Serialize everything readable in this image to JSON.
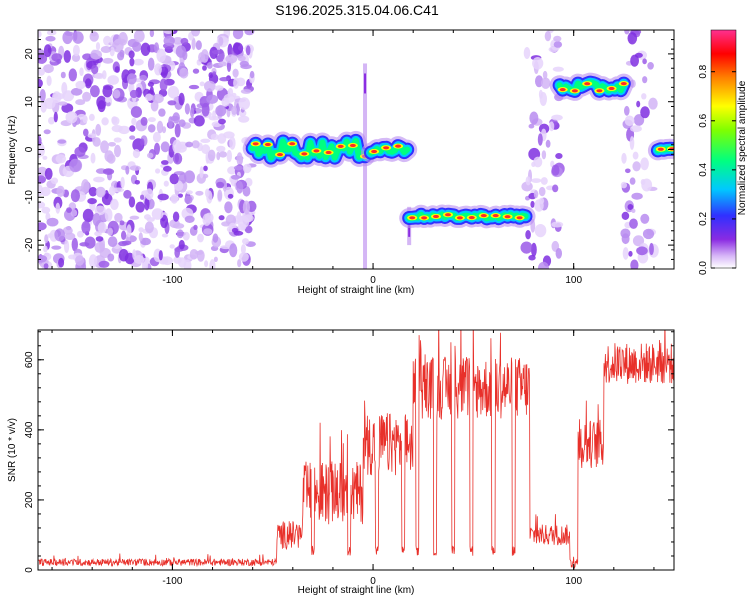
{
  "title": "S196.2025.315.04.06.C41",
  "chart_data": [
    {
      "type": "heatmap",
      "xlabel": "Height of straight line (km)",
      "ylabel": "Frequency (Hz)",
      "xlim": [
        -167,
        150
      ],
      "ylim": [
        -25,
        25
      ],
      "xticks": [
        -100,
        0,
        100
      ],
      "yticks": [
        -20,
        -10,
        0,
        10,
        20
      ],
      "colorbar": {
        "label": "Normalized spectral amplitude",
        "range": [
          0.0,
          0.97
        ],
        "ticks": [
          "0.0",
          "0.2",
          "0.4",
          "0.6",
          "0.8"
        ],
        "tick_values": [
          0.0,
          0.2,
          0.4,
          0.6,
          0.8
        ],
        "colors": [
          "#ffffff",
          "#d8b8f8",
          "#8a2be2",
          "#3030ff",
          "#00c8ff",
          "#00ff80",
          "#80ff00",
          "#ffff00",
          "#ff8000",
          "#ff0000",
          "#ff3090"
        ]
      },
      "noise_regions": [
        {
          "x_start": -167,
          "x_end": -60,
          "density": "dense"
        },
        {
          "x_start": 76,
          "x_end": 93,
          "density": "medium"
        },
        {
          "x_start": 125,
          "x_end": 140,
          "density": "medium"
        }
      ],
      "tracks": [
        {
          "x_start": -60,
          "x_end": -4,
          "freq": 0,
          "variation": 1.8
        },
        {
          "x_start": -1,
          "x_end": 17,
          "freq": 0,
          "variation": 1.0
        },
        {
          "x_start": 18,
          "x_end": 76,
          "freq": -14,
          "variation": 0.4
        },
        {
          "x_start": 93,
          "x_end": 125,
          "freq": 13,
          "variation": 1.0
        },
        {
          "x_start": 142,
          "x_end": 149,
          "freq": 0,
          "variation": 0.2
        }
      ],
      "vertical_features": [
        {
          "x": -4,
          "freq_min": -25,
          "freq_max": 18
        },
        {
          "x": 18,
          "freq_min": -20,
          "freq_max": -12
        }
      ]
    },
    {
      "type": "line",
      "xlabel": "Height of straight line (km)",
      "ylabel": "SNR (10 * v/v)",
      "xlim": [
        -167,
        150
      ],
      "ylim": [
        0,
        685
      ],
      "xticks": [
        -100,
        0,
        100
      ],
      "yticks": [
        0,
        200,
        400,
        600
      ],
      "color": "#e8302a",
      "series": [
        {
          "name": "SNR",
          "segments": [
            {
              "x_start": -167,
              "x_end": -48,
              "base": 22,
              "noise": 10
            },
            {
              "x_start": -48,
              "x_end": -35,
              "base": 100,
              "noise": 40
            },
            {
              "x_start": -35,
              "x_end": -5,
              "base": 220,
              "noise": 90
            },
            {
              "x_start": -5,
              "x_end": 20,
              "base": 360,
              "noise": 90
            },
            {
              "x_start": 20,
              "x_end": 78,
              "base": 520,
              "noise": 90
            },
            {
              "x_start": 78,
              "x_end": 98,
              "base": 100,
              "noise": 30
            },
            {
              "x_start": 98,
              "x_end": 102,
              "base": 20,
              "noise": 15
            },
            {
              "x_start": 102,
              "x_end": 115,
              "base": 360,
              "noise": 70
            },
            {
              "x_start": 115,
              "x_end": 150,
              "base": 590,
              "noise": 60
            }
          ],
          "dropouts": [
            -30,
            -12,
            2,
            15,
            22,
            31,
            40,
            49,
            60,
            70
          ]
        }
      ]
    }
  ]
}
